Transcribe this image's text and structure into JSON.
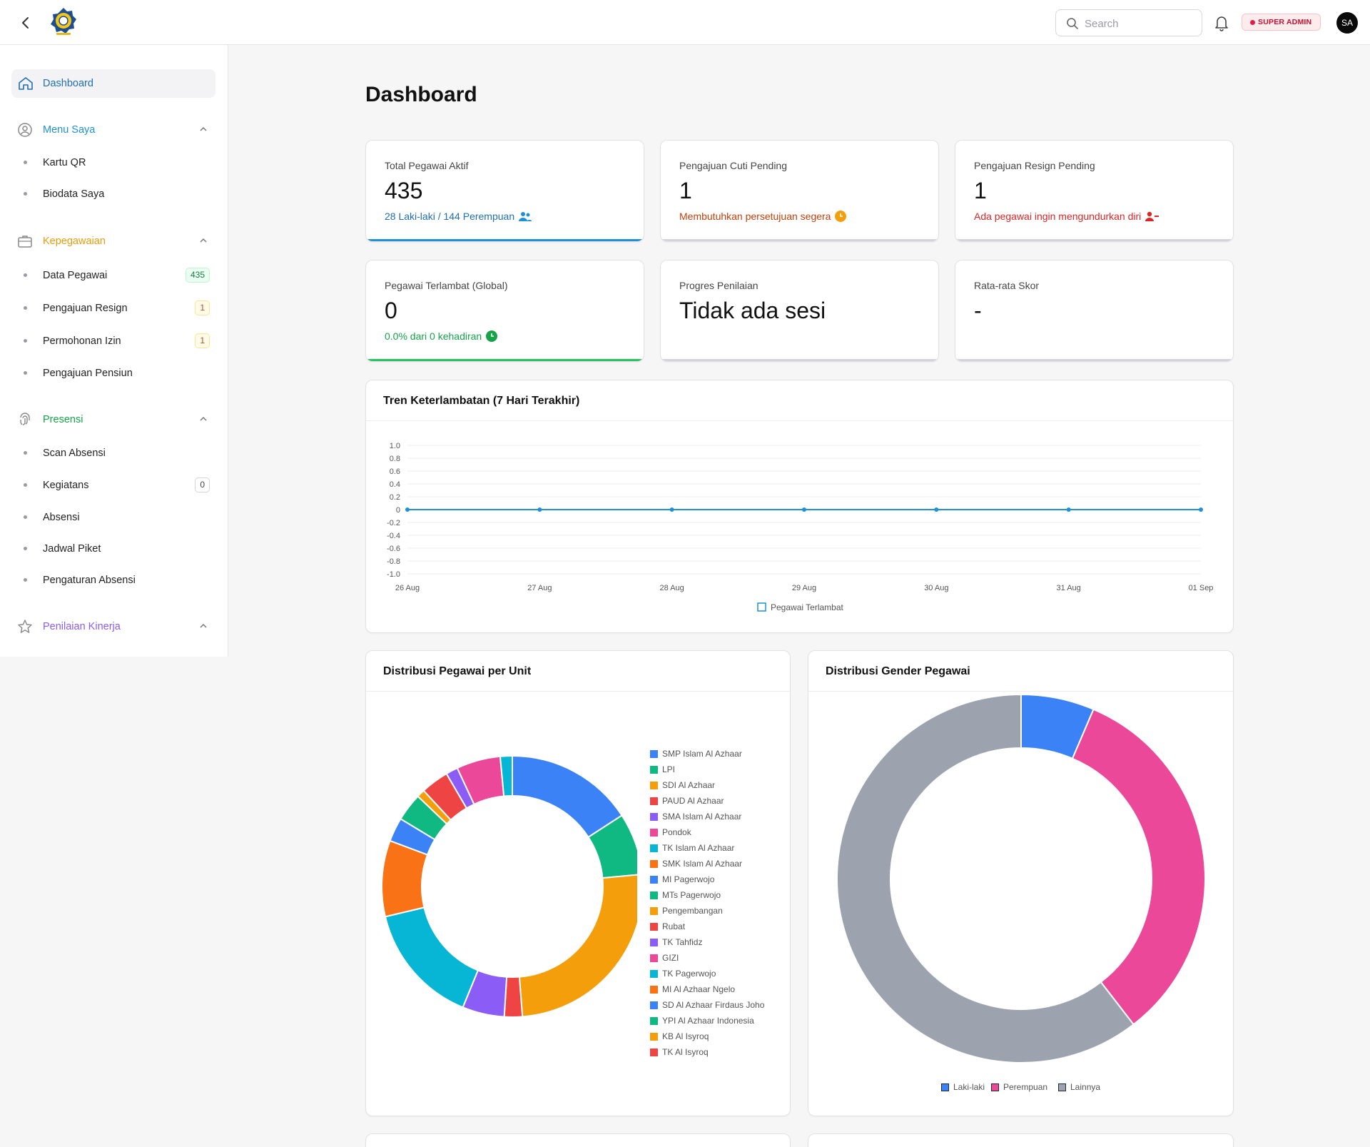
{
  "header": {
    "search_placeholder": "Search",
    "role_badge": "SUPER ADMIN",
    "avatar_initials": "SA"
  },
  "sidebar": {
    "dashboard": "Dashboard",
    "sections": [
      {
        "label": "Menu Saya",
        "color": "#1f8fd6",
        "icon": "user-circle-icon",
        "items": [
          {
            "label": "Kartu QR"
          },
          {
            "label": "Biodata Saya"
          }
        ]
      },
      {
        "label": "Kepegawaian",
        "color": "#e89b0c",
        "icon": "briefcase-icon",
        "items": [
          {
            "label": "Data Pegawai",
            "badge": "435"
          },
          {
            "label": "Pengajuan Resign",
            "badge": "1"
          },
          {
            "label": "Permohonan Izin",
            "badge": "1"
          },
          {
            "label": "Pengajuan Pensiun"
          }
        ]
      },
      {
        "label": "Presensi",
        "color": "#16a34a",
        "icon": "fingerprint-icon",
        "items": [
          {
            "label": "Scan Absensi"
          },
          {
            "label": "Kegiatans",
            "badge": "0"
          },
          {
            "label": "Absensi"
          },
          {
            "label": "Jadwal Piket"
          },
          {
            "label": "Pengaturan Absensi"
          }
        ]
      },
      {
        "label": "Penilaian Kinerja",
        "color": "#8b5cf6",
        "icon": "star-icon",
        "items": []
      }
    ]
  },
  "page_title": "Dashboard",
  "stats": [
    {
      "title": "Total Pegawai Aktif",
      "value": "435",
      "subtitle": "28 Laki-laki / 144 Perempuan",
      "sub_color": "#1f6fb4",
      "bar_color": "#1f8fd6",
      "icon": "users-icon"
    },
    {
      "title": "Pengajuan Cuti Pending",
      "value": "1",
      "subtitle": "Membutuhkan persetujuan segera",
      "sub_color": "#c2410c",
      "bar_color": "#d4d4d8",
      "icon": "clock-icon"
    },
    {
      "title": "Pengajuan Resign Pending",
      "value": "1",
      "subtitle": "Ada pegawai ingin mengundurkan diri",
      "sub_color": "#dc2626",
      "bar_color": "#d4d4d8",
      "icon": "user-minus-icon"
    },
    {
      "title": "Pegawai Terlambat (Global)",
      "value": "0",
      "subtitle": "0.0% dari 0 kehadiran",
      "sub_color": "#16a34a",
      "bar_color": "#22c55e",
      "icon": "clock-icon"
    },
    {
      "title": "Progres Penilaian",
      "value": "Tidak ada sesi",
      "subtitle": "",
      "sub_color": "#444",
      "bar_color": "#d4d4d8",
      "icon": ""
    },
    {
      "title": "Rata-rata Skor",
      "value": "-",
      "subtitle": "",
      "sub_color": "#444",
      "bar_color": "#d4d4d8",
      "icon": ""
    }
  ],
  "panels": {
    "trend_title": "Tren Keterlambatan (7 Hari Terakhir)",
    "unit_title": "Distribusi Pegawai per Unit",
    "gender_title": "Distribusi Gender Pegawai"
  },
  "chart_data": [
    {
      "type": "line",
      "x": [
        "26 Aug",
        "27 Aug",
        "28 Aug",
        "29 Aug",
        "30 Aug",
        "31 Aug",
        "01 Sep"
      ],
      "series": [
        {
          "name": "Pegawai Terlambat",
          "values": [
            0,
            0,
            0,
            0,
            0,
            0,
            0
          ],
          "color": "#1f8fd6"
        }
      ],
      "ylim": [
        -1.0,
        1.0
      ],
      "yticks": [
        "1.0",
        "0.8",
        "0.6",
        "0.4",
        "0.2",
        "0",
        "-0.2",
        "-0.4",
        "-0.6",
        "-0.8",
        "-1.0"
      ],
      "grid": true,
      "legend": "bottom"
    },
    {
      "type": "pie",
      "donut": true,
      "legend": "right",
      "categories": [
        "SMP Islam Al Azhaar",
        "LPI",
        "SDI Al Azhaar",
        "PAUD Al Azhaar",
        "SMA Islam Al Azhaar",
        "Pondok",
        "TK Islam Al Azhaar",
        "SMK Islam Al Azhaar",
        "MI Pagerwojo",
        "MTs Pagerwojo",
        "Pengembangan",
        "Rubat",
        "TK Tahfidz",
        "GIZI",
        "TK Pagerwojo",
        "MI Al Azhaar Ngelo",
        "SD Al Azhaar Firdaus Joho",
        "YPI Al Azhaar Indonesia",
        "KB Al Isyroq",
        "TK Al Isyroq"
      ],
      "values": [
        64,
        31,
        102,
        9,
        21,
        0,
        61,
        38,
        12,
        14,
        4,
        14,
        6,
        22,
        6,
        0,
        0,
        0,
        0,
        0
      ],
      "colors": [
        "#3b82f6",
        "#10b981",
        "#f59e0b",
        "#ef4444",
        "#8b5cf6",
        "#ec4899",
        "#06b6d4",
        "#f97316",
        "#3b82f6",
        "#10b981",
        "#f59e0b",
        "#ef4444",
        "#8b5cf6",
        "#ec4899",
        "#06b6d4",
        "#f97316",
        "#3b82f6",
        "#10b981",
        "#f59e0b",
        "#ef4444"
      ]
    },
    {
      "type": "pie",
      "donut": true,
      "legend": "bottom",
      "categories": [
        "Laki-laki",
        "Perempuan",
        "Lainnya"
      ],
      "values": [
        28,
        144,
        263
      ],
      "colors": [
        "#3b82f6",
        "#ec4899",
        "#9ca3af"
      ]
    }
  ]
}
